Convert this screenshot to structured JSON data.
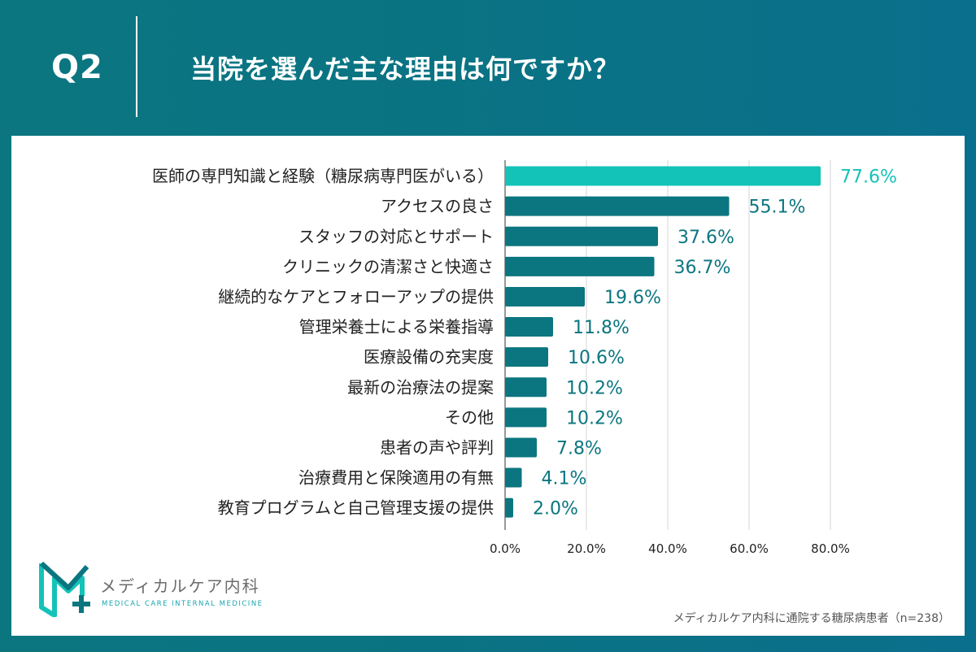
{
  "header": {
    "q_label": "Q2",
    "question": "当院を選んだ主な理由は何ですか？"
  },
  "chart_data": {
    "type": "bar",
    "orientation": "horizontal",
    "categories": [
      "医師の専門知識と経験（糖尿病専門医がいる）",
      "アクセスの良さ",
      "スタッフの対応とサポート",
      "クリニックの清潔さと快適さ",
      "継続的なケアとフォローアップの提供",
      "管理栄養士による栄養指導",
      "医療設備の充実度",
      "最新の治療法の提案",
      "その他",
      "患者の声や評判",
      "治療費用と保険適用の有無",
      "教育プログラムと自己管理支援の提供"
    ],
    "values": [
      77.6,
      55.1,
      37.6,
      36.7,
      19.6,
      11.8,
      10.6,
      10.2,
      10.2,
      7.8,
      4.1,
      2.0
    ],
    "value_labels": [
      "77.6%",
      "55.1%",
      "37.6%",
      "36.7%",
      "19.6%",
      "11.8%",
      "10.6%",
      "10.2%",
      "10.2%",
      "7.8%",
      "4.1%",
      "2.0%"
    ],
    "xlim": [
      0,
      88
    ],
    "xticks": [
      0,
      20,
      40,
      60,
      80
    ],
    "xtick_labels": [
      "0.0%",
      "20.0%",
      "40.0%",
      "60.0%",
      "80.0%"
    ],
    "grid": true,
    "colors": {
      "highlight": "#14c3b8",
      "bar": "#0b7680",
      "highlight_label": "#14c3b8",
      "label": "#0b7680"
    }
  },
  "logo": {
    "name": "メディカルケア内科",
    "subtitle": "MEDICAL CARE INTERNAL MEDICINE"
  },
  "footnote": "メディカルケア内科に通院する糖尿病患者（n=238）"
}
